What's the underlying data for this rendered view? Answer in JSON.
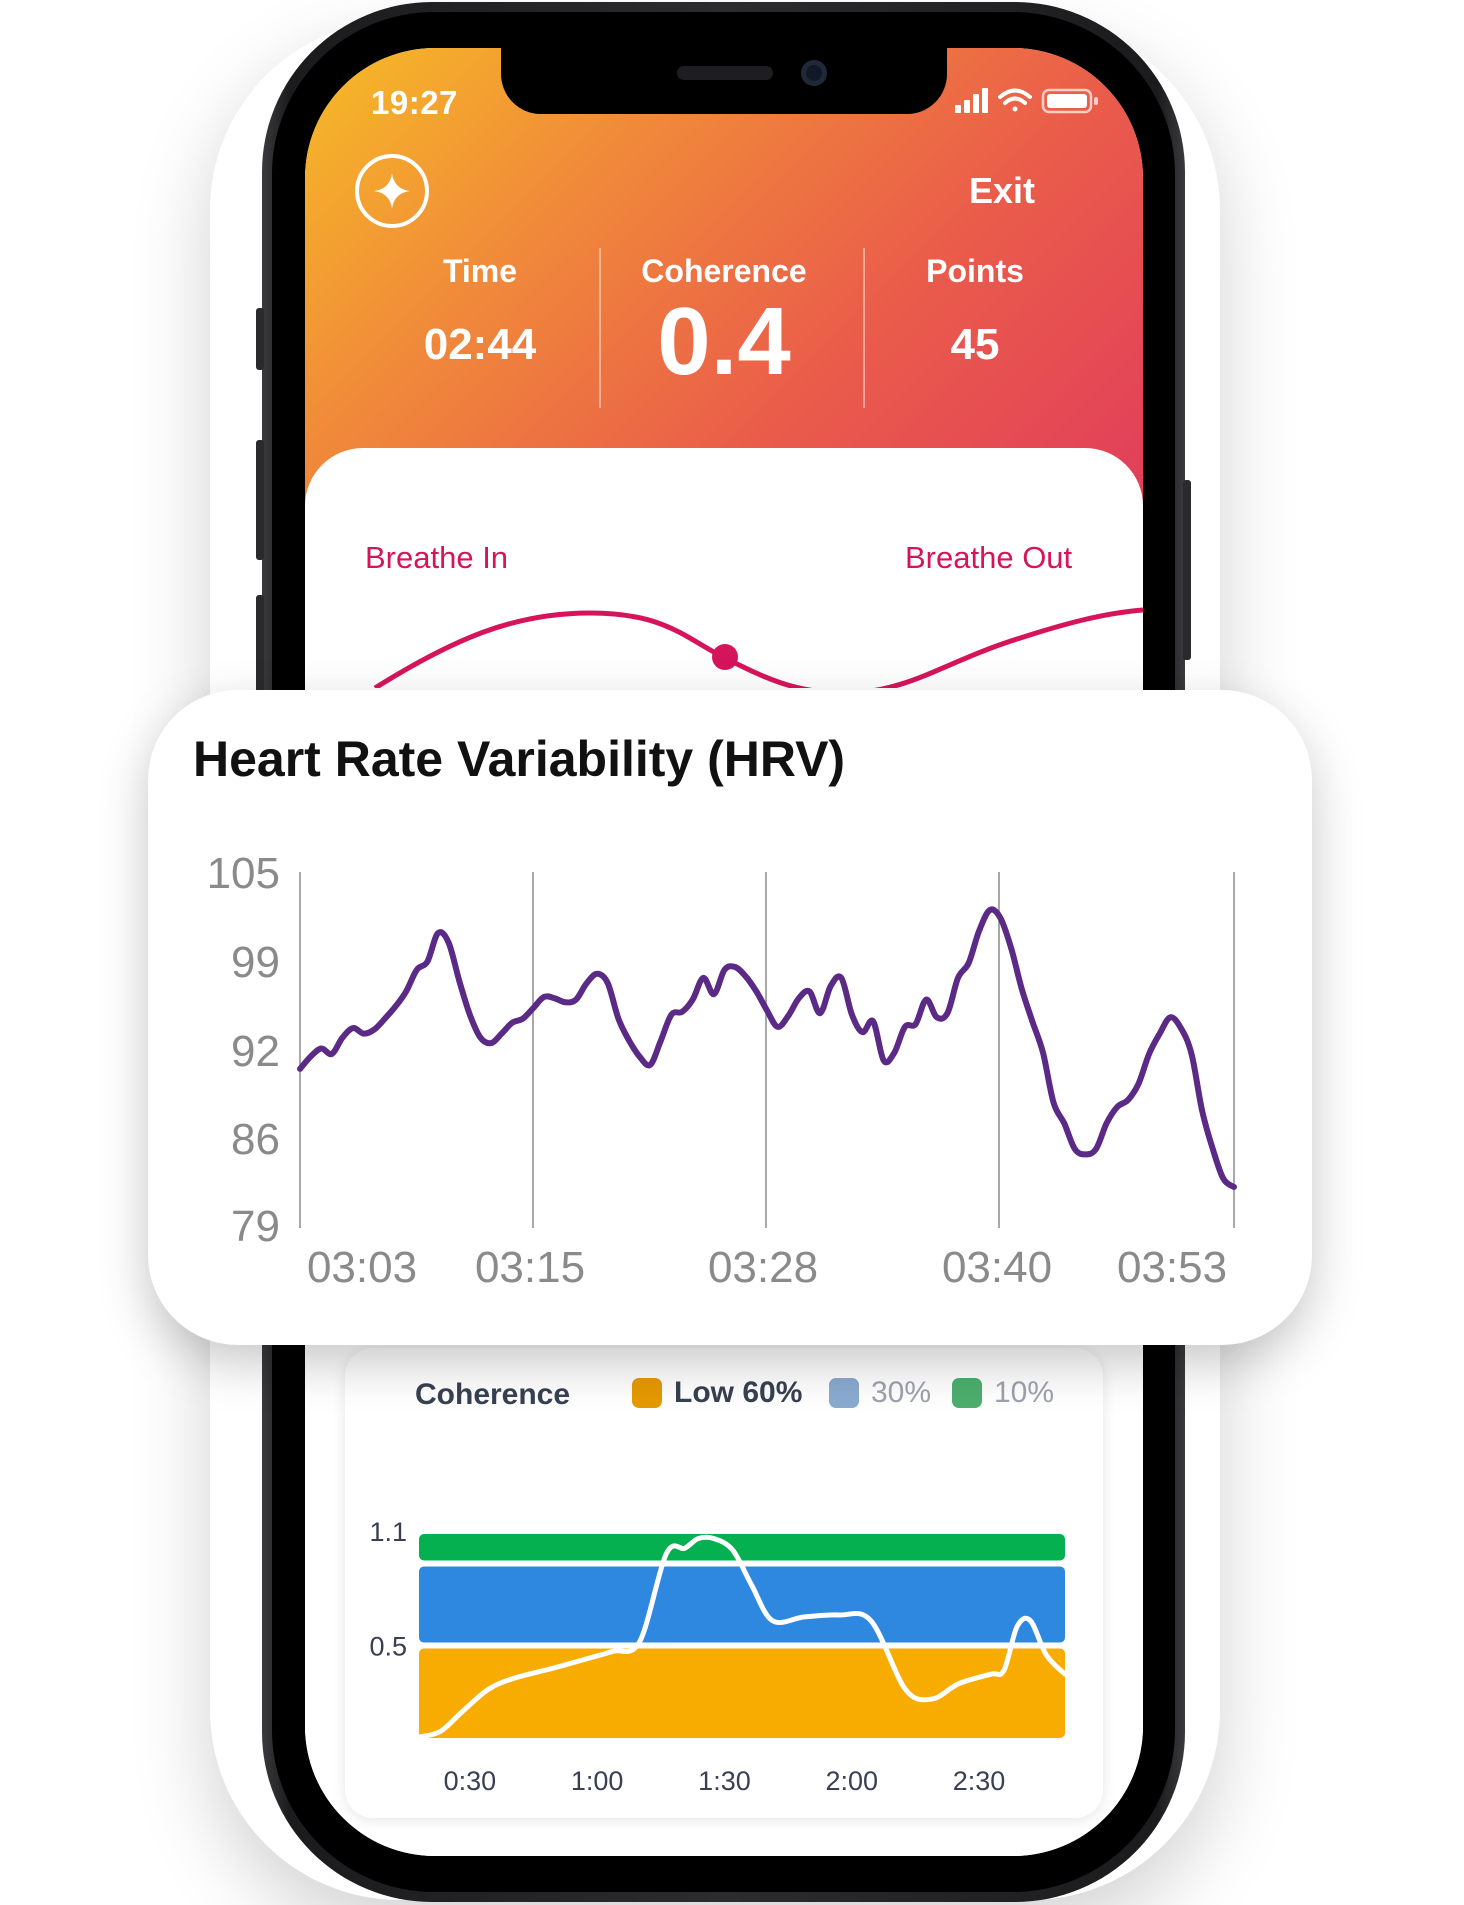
{
  "status_bar": {
    "time": "19:27"
  },
  "header": {
    "exit_label": "Exit",
    "stats": [
      {
        "label": "Time",
        "value": "02:44"
      },
      {
        "label": "Coherence",
        "value": "0.4"
      },
      {
        "label": "Points",
        "value": "45"
      }
    ]
  },
  "breathing": {
    "in_label": "Breathe In",
    "out_label": "Breathe Out"
  },
  "colors": {
    "hrv_line": "#5b2a86",
    "breath_line": "#d6145c",
    "coherence_low": "#f8ab00",
    "coherence_mid": "#2f88e0",
    "coherence_high": "#04b04f",
    "coherence_line": "#ffffff"
  },
  "chart_data": [
    {
      "type": "line",
      "title": "Heart Rate Variability (HRV)",
      "x_tick_labels": [
        "03:03",
        "03:15",
        "03:28",
        "03:40",
        "03:53"
      ],
      "y_tick_labels": [
        "105",
        "99",
        "92",
        "86",
        "79"
      ],
      "ylim": [
        79,
        105
      ],
      "grid": "vertical",
      "series": [
        {
          "values": [
            90.5,
            91.4,
            92,
            91.6,
            92.8,
            93.5,
            93.1,
            93.4,
            94.2,
            95.1,
            96.2,
            97.8,
            98.4,
            100.5,
            99.8,
            97,
            94.5,
            92.8,
            92.4,
            93.1,
            93.9,
            94.2,
            95,
            95.8,
            95.7,
            95.4,
            95.6,
            96.8,
            97.5,
            96.8,
            94.2,
            92.6,
            91.4,
            90.8,
            92.6,
            94.5,
            94.7,
            95.6,
            97.2,
            96,
            97.8,
            98,
            97.3,
            96.2,
            94.8,
            93.6,
            94.4,
            95.7,
            96.2,
            94.6,
            96.6,
            97.2,
            94.5,
            93.2,
            94,
            91.1,
            91.7,
            93.6,
            93.8,
            95.6,
            94.3,
            94.6,
            97.2,
            98.3,
            100.7,
            102.2,
            101.6,
            99.4,
            96.4,
            94,
            91.7,
            88,
            86.5,
            84.6,
            84.2,
            84.6,
            86.5,
            87.7,
            88.2,
            89.4,
            91.6,
            93.1,
            94.3,
            93.5,
            91.6,
            87.4,
            84.6,
            82.4,
            81.8
          ]
        }
      ]
    },
    {
      "type": "area",
      "title": "Coherence",
      "legend": [
        {
          "label": "Low 60%",
          "color": "#e69a00"
        },
        {
          "label": "30%",
          "color": "#8aaad0"
        },
        {
          "label": "10%",
          "color": "#4caf6e"
        }
      ],
      "y_tick_labels": [
        "1.1",
        "0.5"
      ],
      "x_tick_labels": [
        "0:30",
        "1:00",
        "1:30",
        "2:00",
        "2:30"
      ],
      "bands": [
        {
          "name": "low",
          "from": 0,
          "to": 0.5
        },
        {
          "name": "mid",
          "from": 0.5,
          "to": 0.93
        },
        {
          "name": "high",
          "from": 0.93,
          "to": 1.12
        }
      ],
      "x": [
        0.22,
        0.3,
        0.38,
        0.48,
        0.58,
        0.72,
        0.85,
        0.95,
        1.05,
        1.15,
        1.22,
        1.27,
        1.33,
        1.4,
        1.47,
        1.55,
        1.67,
        1.8,
        1.92,
        2.05,
        2.15,
        2.25,
        2.37,
        2.42,
        2.47,
        2.52,
        2.58,
        2.65
      ],
      "values": [
        0.02,
        0.05,
        0.15,
        0.27,
        0.33,
        0.38,
        0.43,
        0.47,
        0.52,
        0.98,
        1.01,
        1.06,
        1.06,
        1.0,
        0.82,
        0.63,
        0.65,
        0.66,
        0.63,
        0.27,
        0.22,
        0.3,
        0.35,
        0.37,
        0.6,
        0.63,
        0.45,
        0.35
      ]
    }
  ]
}
